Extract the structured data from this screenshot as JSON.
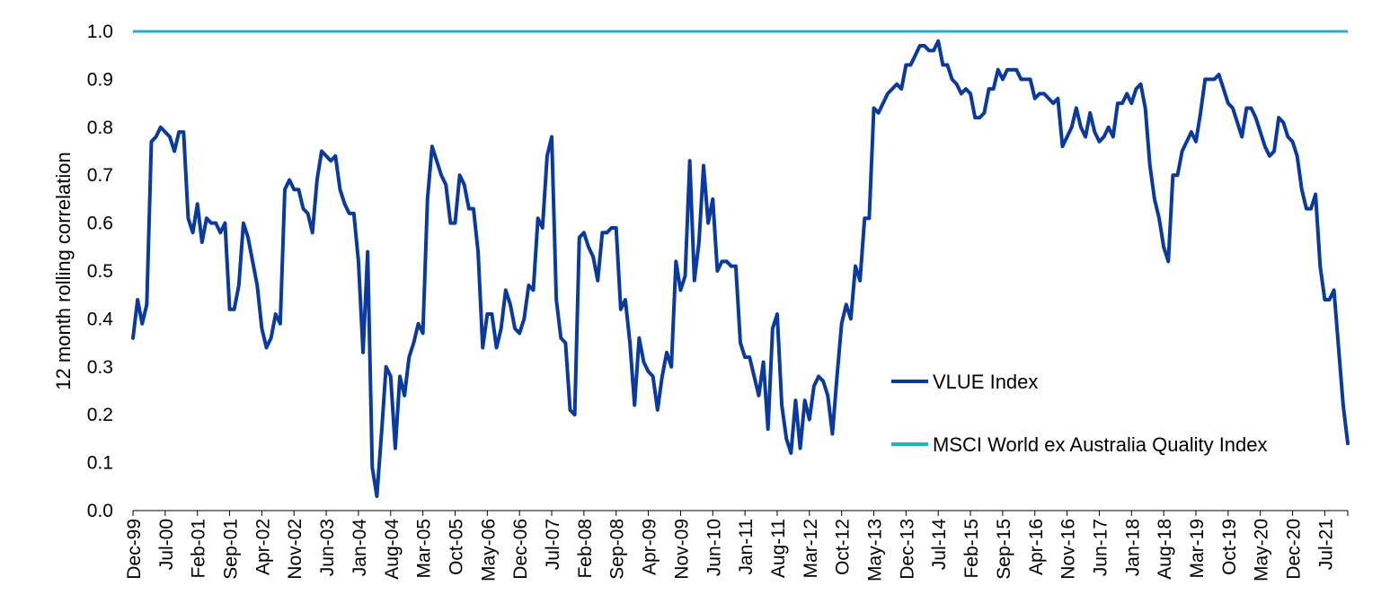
{
  "chart_data": {
    "type": "line",
    "title": "",
    "xlabel": "",
    "ylabel": "12 month rolling correlation",
    "ylim": [
      0,
      1.0
    ],
    "yticks": [
      "0.0",
      "0.1",
      "0.2",
      "0.3",
      "0.4",
      "0.5",
      "0.6",
      "0.7",
      "0.8",
      "0.9",
      "1.0"
    ],
    "grid": false,
    "legend_position": "lower-right (inside plot)",
    "x_tick_labels": [
      "Dec-99",
      "Jul-00",
      "Feb-01",
      "Sep-01",
      "Apr-02",
      "Nov-02",
      "Jun-03",
      "Jan-04",
      "Aug-04",
      "Mar-05",
      "Oct-05",
      "May-06",
      "Dec-06",
      "Jul-07",
      "Feb-08",
      "Sep-08",
      "Apr-09",
      "Nov-09",
      "Jun-10",
      "Jan-11",
      "Aug-11",
      "Mar-12",
      "Oct-12",
      "May-13",
      "Dec-13",
      "Jul-14",
      "Feb-15",
      "Sep-15",
      "Apr-16",
      "Nov-16",
      "Jun-17",
      "Jan-18",
      "Aug-18",
      "Mar-19",
      "Oct-19",
      "May-20",
      "Dec-20",
      "Jul-21"
    ],
    "x_start": "Dec-99",
    "x_end": "Apr-22",
    "series": [
      {
        "name": "VLUE Index",
        "color": "#0a3a9f",
        "values": [
          0.36,
          0.44,
          0.39,
          0.43,
          0.77,
          0.78,
          0.8,
          0.79,
          0.78,
          0.75,
          0.79,
          0.79,
          0.61,
          0.58,
          0.64,
          0.56,
          0.61,
          0.6,
          0.6,
          0.58,
          0.6,
          0.42,
          0.42,
          0.47,
          0.6,
          0.57,
          0.52,
          0.47,
          0.38,
          0.34,
          0.36,
          0.41,
          0.39,
          0.67,
          0.69,
          0.67,
          0.67,
          0.63,
          0.62,
          0.58,
          0.69,
          0.75,
          0.74,
          0.73,
          0.74,
          0.67,
          0.64,
          0.62,
          0.62,
          0.52,
          0.33,
          0.54,
          0.09,
          0.03,
          0.16,
          0.3,
          0.28,
          0.13,
          0.28,
          0.24,
          0.32,
          0.35,
          0.39,
          0.37,
          0.65,
          0.76,
          0.73,
          0.7,
          0.68,
          0.6,
          0.6,
          0.7,
          0.68,
          0.63,
          0.63,
          0.54,
          0.34,
          0.41,
          0.41,
          0.34,
          0.38,
          0.46,
          0.43,
          0.38,
          0.37,
          0.4,
          0.47,
          0.46,
          0.61,
          0.59,
          0.74,
          0.78,
          0.44,
          0.36,
          0.35,
          0.21,
          0.2,
          0.57,
          0.58,
          0.55,
          0.53,
          0.48,
          0.58,
          0.58,
          0.59,
          0.59,
          0.42,
          0.44,
          0.35,
          0.22,
          0.36,
          0.31,
          0.29,
          0.28,
          0.21,
          0.28,
          0.33,
          0.3,
          0.52,
          0.46,
          0.49,
          0.73,
          0.48,
          0.56,
          0.72,
          0.6,
          0.65,
          0.5,
          0.52,
          0.52,
          0.51,
          0.51,
          0.35,
          0.32,
          0.32,
          0.28,
          0.24,
          0.31,
          0.17,
          0.38,
          0.41,
          0.22,
          0.15,
          0.12,
          0.23,
          0.13,
          0.23,
          0.19,
          0.26,
          0.28,
          0.27,
          0.24,
          0.16,
          0.28,
          0.39,
          0.43,
          0.4,
          0.51,
          0.48,
          0.61,
          0.61,
          0.84,
          0.83,
          0.85,
          0.87,
          0.88,
          0.89,
          0.88,
          0.93,
          0.93,
          0.95,
          0.97,
          0.97,
          0.96,
          0.96,
          0.98,
          0.93,
          0.93,
          0.9,
          0.89,
          0.87,
          0.88,
          0.87,
          0.82,
          0.82,
          0.83,
          0.88,
          0.88,
          0.92,
          0.9,
          0.92,
          0.92,
          0.92,
          0.9,
          0.9,
          0.9,
          0.86,
          0.87,
          0.87,
          0.86,
          0.85,
          0.86,
          0.76,
          0.78,
          0.8,
          0.84,
          0.8,
          0.78,
          0.83,
          0.79,
          0.77,
          0.78,
          0.8,
          0.78,
          0.85,
          0.85,
          0.87,
          0.85,
          0.88,
          0.89,
          0.84,
          0.72,
          0.65,
          0.61,
          0.55,
          0.52,
          0.7,
          0.7,
          0.75,
          0.77,
          0.79,
          0.77,
          0.83,
          0.9,
          0.9,
          0.9,
          0.91,
          0.88,
          0.85,
          0.84,
          0.81,
          0.78,
          0.84,
          0.84,
          0.82,
          0.79,
          0.76,
          0.74,
          0.75,
          0.82,
          0.81,
          0.78,
          0.77,
          0.74,
          0.67,
          0.63,
          0.63,
          0.66,
          0.51,
          0.44,
          0.44,
          0.46,
          0.34,
          0.22,
          0.14
        ]
      },
      {
        "name": "MSCI World ex Australia Quality Index",
        "color": "#1fb2c9",
        "constant": 1.0
      }
    ]
  }
}
